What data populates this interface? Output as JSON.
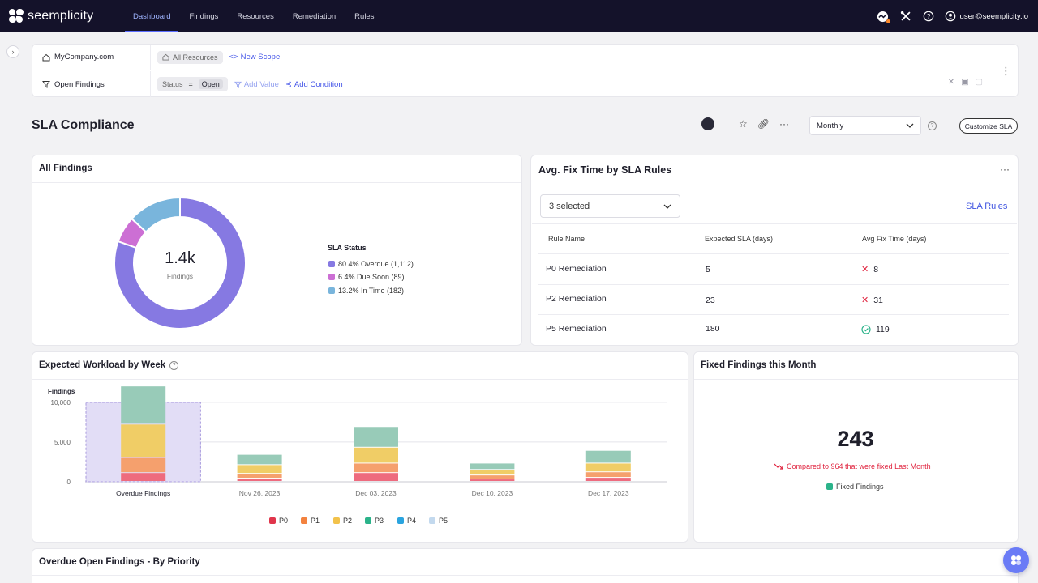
{
  "nav": {
    "brand": "seemplicity",
    "tabs": [
      "Dashboard",
      "Findings",
      "Resources",
      "Remediation",
      "Rules"
    ],
    "active_tab": "Dashboard",
    "user": "user@seemplicity.io"
  },
  "scope": {
    "company": "MyCompany.com",
    "resources_chip": "All Resources",
    "new_scope": "New Scope",
    "filter_label": "Open Findings",
    "condition_field": "Status",
    "condition_op": "=",
    "condition_value": "Open",
    "add_value": "Add Value",
    "add_condition": "Add Condition"
  },
  "page": {
    "title": "SLA Compliance",
    "period_select": "Monthly",
    "customize_button": "Customize SLA"
  },
  "all_findings": {
    "title": "All Findings",
    "center_value": "1.4k",
    "center_label": "Findings",
    "legend_title": "SLA Status",
    "legend": [
      {
        "label": "80.4% Overdue (1,112)",
        "color": "#8679e2"
      },
      {
        "label": "6.4% Due Soon (89)",
        "color": "#cc6fd4"
      },
      {
        "label": "13.2% In Time (182)",
        "color": "#79b5dc"
      }
    ]
  },
  "fix_time": {
    "title": "Avg. Fix Time by SLA Rules",
    "selector": "3 selected",
    "sla_rules_link": "SLA Rules",
    "headers": [
      "Rule Name",
      "Expected SLA (days)",
      "Avg Fix Time (days)"
    ],
    "rows": [
      {
        "name": "P0 Remediation",
        "expected": "5",
        "actual": "8",
        "status": "overdue"
      },
      {
        "name": "P2  Remediation",
        "expected": "23",
        "actual": "31",
        "status": "overdue"
      },
      {
        "name": "P5  Remediation",
        "expected": "180",
        "actual": "119",
        "status": "ok"
      }
    ]
  },
  "workload": {
    "title": "Expected Workload by Week",
    "legend": [
      {
        "label": "P0",
        "color": "#e0354b"
      },
      {
        "label": "P1",
        "color": "#f3823f"
      },
      {
        "label": "P2",
        "color": "#f2c24b"
      },
      {
        "label": "P3",
        "color": "#2bb38a"
      },
      {
        "label": "P4",
        "color": "#2aa4df"
      },
      {
        "label": "P5",
        "color": "#c3d9ee"
      }
    ]
  },
  "chart_data": {
    "type": "bar",
    "stacked": true,
    "ylabel": "Findings",
    "ylim": [
      0,
      11000
    ],
    "yticks": [
      "0",
      "5,000",
      "10,000"
    ],
    "yticks_values": [
      0,
      5000,
      10000
    ],
    "categories": [
      "Overdue Findings",
      "Nov 26, 2023",
      "Dec 03, 2023",
      "Dec 10, 2023",
      "Dec 17, 2023"
    ],
    "highlight_category": "Overdue Findings",
    "series": [
      {
        "name": "P0",
        "color": "#ee6b7e",
        "values": [
          1100,
          400,
          1100,
          300,
          500
        ]
      },
      {
        "name": "P1",
        "color": "#f5a06d",
        "values": [
          1900,
          600,
          1200,
          500,
          700
        ]
      },
      {
        "name": "P2",
        "color": "#f0cd66",
        "values": [
          4200,
          1100,
          2000,
          700,
          1100
        ]
      },
      {
        "name": "P3",
        "color": "#98cbb8",
        "values": [
          4800,
          1300,
          2600,
          800,
          1600
        ]
      },
      {
        "name": "P4",
        "color": "#7fbde2",
        "values": [
          0,
          0,
          0,
          0,
          0
        ]
      },
      {
        "name": "P5",
        "color": "#c3d9ee",
        "values": [
          0,
          0,
          0,
          0,
          0
        ]
      }
    ],
    "grid": true
  },
  "fixed": {
    "title": "Fixed Findings this Month",
    "value": "243",
    "comparison": "Compared to 964 that were fixed Last Month",
    "legend": "Fixed Findings",
    "legend_color": "#2bb38a",
    "trend_color": "#e0243f"
  },
  "overdue": {
    "title": "Overdue Open Findings - By Priority"
  }
}
